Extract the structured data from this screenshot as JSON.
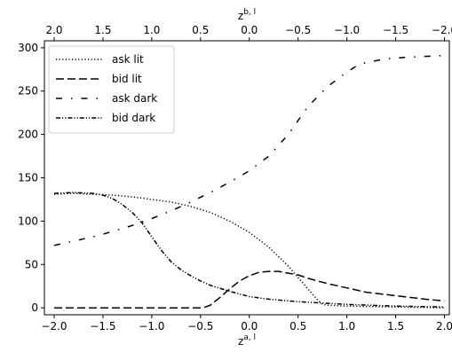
{
  "chart_data": {
    "type": "line",
    "xlabel": "z^{a,l}",
    "xlabel_base": "z",
    "xlabel_sup": "a, l",
    "x2label": "z^{b,l}",
    "x2label_base": "z",
    "x2label_sup": "b, l",
    "xlim": [
      -2.1,
      2.05
    ],
    "ylim": [
      -8,
      308
    ],
    "xticks": [
      -2.0,
      -1.5,
      -1.0,
      -0.5,
      0.0,
      0.5,
      1.0,
      1.5,
      2.0
    ],
    "xtick_labels": [
      "−2.0",
      "−1.5",
      "−1.0",
      "−0.5",
      "0.0",
      "0.5",
      "1.0",
      "1.5",
      "2.0"
    ],
    "x2tick_labels": [
      "2.0",
      "1.5",
      "1.0",
      "0.5",
      "0.0",
      "−0.5",
      "−1.0",
      "−1.5",
      "−2.0"
    ],
    "yticks": [
      0,
      50,
      100,
      150,
      200,
      250,
      300
    ],
    "ytick_labels": [
      "0",
      "50",
      "100",
      "150",
      "200",
      "250",
      "300"
    ],
    "grid": false,
    "legend_position": "top-left",
    "series": [
      {
        "name": "ask lit",
        "style": "dotted",
        "x": [
          -2.0,
          -1.8,
          -1.6,
          -1.4,
          -1.2,
          -1.0,
          -0.8,
          -0.6,
          -0.4,
          -0.2,
          0.0,
          0.2,
          0.4,
          0.5,
          0.6,
          0.7,
          0.75,
          0.8,
          1.0,
          1.5,
          2.0
        ],
        "y": [
          131,
          132,
          131,
          130,
          128,
          125,
          122,
          117,
          110,
          100,
          87,
          70,
          48,
          35,
          22,
          9,
          4,
          3,
          2,
          1,
          0
        ]
      },
      {
        "name": "bid lit",
        "style": "dashed",
        "x": [
          -2.0,
          -1.5,
          -1.0,
          -0.5,
          -0.45,
          -0.4,
          -0.3,
          -0.2,
          -0.1,
          0.0,
          0.1,
          0.2,
          0.3,
          0.4,
          0.5,
          0.6,
          0.8,
          1.0,
          1.2,
          1.5,
          1.8,
          2.0
        ],
        "y": [
          0,
          0,
          0,
          0,
          1,
          3,
          12,
          22,
          31,
          37,
          41,
          42,
          42,
          40,
          38,
          34,
          28,
          23,
          18,
          14,
          10,
          8
        ]
      },
      {
        "name": "ask dark",
        "style": "dashdot",
        "x": [
          -2.0,
          -1.8,
          -1.6,
          -1.4,
          -1.2,
          -1.0,
          -0.8,
          -0.6,
          -0.4,
          -0.2,
          0.0,
          0.2,
          0.4,
          0.6,
          0.8,
          1.0,
          1.1,
          1.2,
          1.4,
          1.6,
          1.8,
          2.0
        ],
        "y": [
          72,
          77,
          82,
          88,
          95,
          103,
          112,
          122,
          133,
          145,
          158,
          175,
          200,
          232,
          255,
          272,
          279,
          283,
          287,
          289,
          290,
          291
        ]
      },
      {
        "name": "bid dark",
        "style": "dashdotdot",
        "x": [
          -2.0,
          -1.8,
          -1.6,
          -1.5,
          -1.4,
          -1.3,
          -1.2,
          -1.1,
          -1.0,
          -0.9,
          -0.8,
          -0.7,
          -0.6,
          -0.5,
          -0.4,
          -0.2,
          0.0,
          0.2,
          0.5,
          1.0,
          1.5,
          2.0
        ],
        "y": [
          132,
          133,
          132,
          130,
          126,
          119,
          110,
          98,
          82,
          66,
          53,
          44,
          37,
          31,
          26,
          19,
          13,
          10,
          7,
          4,
          2,
          1
        ]
      }
    ]
  }
}
